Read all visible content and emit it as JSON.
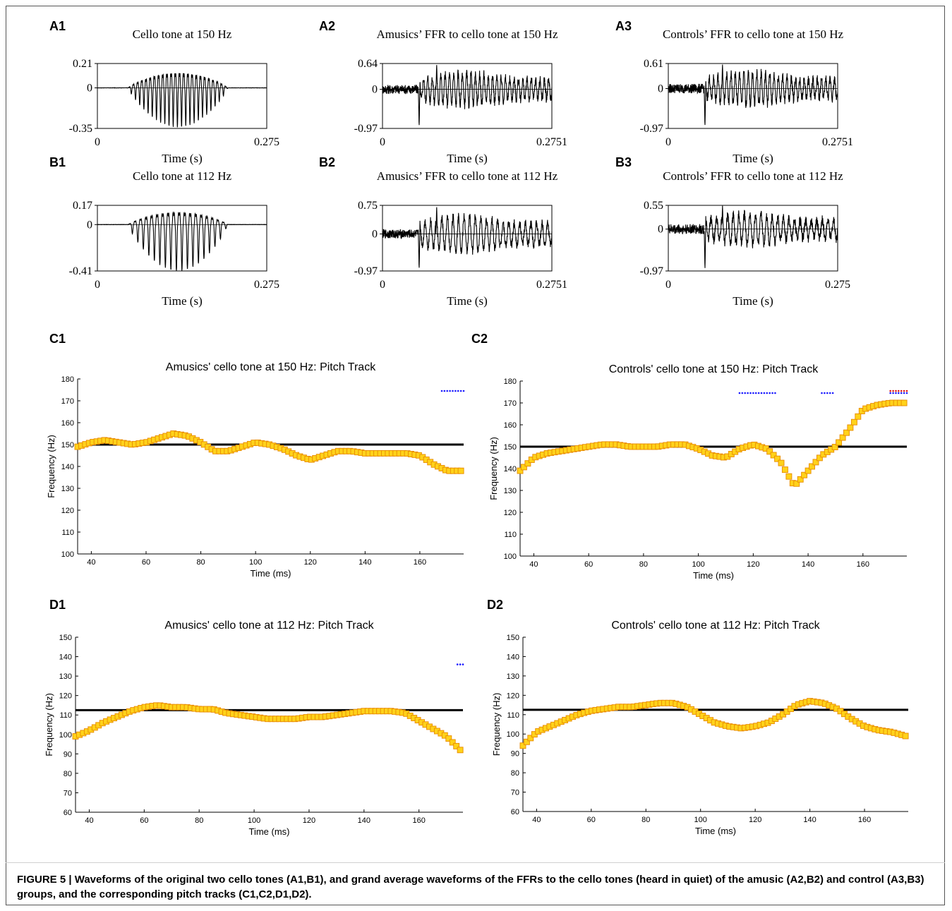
{
  "panel_labels": {
    "A1": "A1",
    "A2": "A2",
    "A3": "A3",
    "B1": "B1",
    "B2": "B2",
    "B3": "B3",
    "C1": "C1",
    "C2": "C2",
    "D1": "D1",
    "D2": "D2"
  },
  "caption": {
    "lead": "FIGURE 5 | ",
    "text": "Waveforms of the original two cello tones (A1,B1), and grand average waveforms of the FFRs to the cello tones (heard in quiet) of the amusic (A2,B2) and control (A3,B3) groups, and the corresponding pitch tracks (C1,C2,D1,D2)."
  },
  "colors": {
    "waveform": "#000000",
    "pitch_marker_fill": "#ffd21a",
    "pitch_marker_edge": "#e88a00",
    "reference_line": "#000000",
    "sig_blue": "#1a1aff",
    "sig_red": "#dd1010"
  },
  "chart_data": [
    {
      "id": "A1",
      "type": "line",
      "title": "Cello tone at 150 Hz",
      "xlabel": "Time (s)",
      "xlim": [
        0,
        0.275
      ],
      "x_tick_labels": [
        "0",
        "0.275"
      ],
      "y_tick_labels": [
        "0.21",
        "0",
        "-0.35"
      ],
      "ylim": [
        -0.35,
        0.21
      ],
      "waveform": {
        "onset_s": 0.05,
        "offset_s": 0.22,
        "cycles": 25,
        "pos_peak": 0.19,
        "neg_peak": -0.34
      }
    },
    {
      "id": "A2",
      "type": "line",
      "title": "Amusics’ FFR to cello tone at 150 Hz",
      "xlabel": "Time (s)",
      "xlim": [
        0,
        0.2751
      ],
      "x_tick_labels": [
        "0",
        "0.2751"
      ],
      "y_tick_labels": [
        "0.64",
        "0",
        "-0.97"
      ],
      "ylim": [
        -0.97,
        0.64
      ],
      "waveform": {
        "onset_s": 0.058,
        "offset_s": 0.2751,
        "cycles": 31,
        "pos_peak": 0.62,
        "neg_peak": -0.97
      }
    },
    {
      "id": "A3",
      "type": "line",
      "title": "Controls’ FFR to cello tone at 150 Hz",
      "xlabel": "Time (s)",
      "xlim": [
        0,
        0.2751
      ],
      "x_tick_labels": [
        "0",
        "0.2751"
      ],
      "y_tick_labels": [
        "0.61",
        "0",
        "-0.97"
      ],
      "ylim": [
        -0.97,
        0.61
      ],
      "waveform": {
        "onset_s": 0.058,
        "offset_s": 0.2751,
        "cycles": 31,
        "pos_peak": 0.6,
        "neg_peak": -0.97
      }
    },
    {
      "id": "B1",
      "type": "line",
      "title": "Cello tone at 112 Hz",
      "xlabel": "Time (s)",
      "xlim": [
        0,
        0.275
      ],
      "x_tick_labels": [
        "0",
        "0.275"
      ],
      "y_tick_labels": [
        "0.17",
        "0",
        "-0.41"
      ],
      "ylim": [
        -0.41,
        0.17
      ],
      "waveform": {
        "onset_s": 0.05,
        "offset_s": 0.22,
        "cycles": 19,
        "pos_peak": 0.16,
        "neg_peak": -0.41
      }
    },
    {
      "id": "B2",
      "type": "line",
      "title": "Amusics’ FFR to cello tone at 112 Hz",
      "xlabel": "Time (s)",
      "xlim": [
        0,
        0.2751
      ],
      "x_tick_labels": [
        "0",
        "0.2751"
      ],
      "y_tick_labels": [
        "0.75",
        "0",
        "-0.97"
      ],
      "ylim": [
        -0.97,
        0.75
      ],
      "waveform": {
        "onset_s": 0.058,
        "offset_s": 0.2751,
        "cycles": 24,
        "pos_peak": 0.72,
        "neg_peak": -0.97
      }
    },
    {
      "id": "B3",
      "type": "line",
      "title": "Controls’ FFR to cello tone at 112 Hz",
      "xlabel": "Time (s)",
      "xlim": [
        0,
        0.275
      ],
      "x_tick_labels": [
        "0",
        "0.275"
      ],
      "y_tick_labels": [
        "0.55",
        "0",
        "-0.97"
      ],
      "ylim": [
        -0.97,
        0.55
      ],
      "waveform": {
        "onset_s": 0.058,
        "offset_s": 0.275,
        "cycles": 24,
        "pos_peak": 0.54,
        "neg_peak": -0.97
      }
    },
    {
      "id": "C1",
      "type": "scatter",
      "title": "Amusics' cello tone at 150 Hz: Pitch Track",
      "xlabel": "Time (ms)",
      "ylabel": "Frequency (Hz)",
      "xlim": [
        35,
        176
      ],
      "ylim": [
        100,
        180
      ],
      "reference_hz": 150,
      "x_ticks": [
        40,
        60,
        80,
        100,
        120,
        140,
        160
      ],
      "y_ticks": [
        100,
        110,
        120,
        130,
        140,
        150,
        160,
        170,
        180
      ],
      "x": [
        35,
        40,
        45,
        50,
        55,
        60,
        65,
        70,
        75,
        80,
        85,
        90,
        95,
        100,
        105,
        110,
        115,
        120,
        125,
        130,
        135,
        140,
        145,
        150,
        155,
        160,
        165,
        170,
        175
      ],
      "y": [
        149,
        151,
        152,
        151,
        150,
        151,
        153,
        155,
        154,
        151,
        147,
        147,
        149,
        151,
        150,
        148,
        145,
        143,
        145,
        147,
        147,
        146,
        146,
        146,
        146,
        145,
        141,
        138,
        138
      ],
      "significance": [
        {
          "color": "blue",
          "x": [
            168,
            176
          ],
          "y": 174.5
        }
      ]
    },
    {
      "id": "C2",
      "type": "scatter",
      "title": "Controls' cello tone at 150 Hz: Pitch Track",
      "xlabel": "Time (ms)",
      "ylabel": "Frequency (Hz)",
      "xlim": [
        35,
        176
      ],
      "ylim": [
        100,
        180
      ],
      "reference_hz": 150,
      "x_ticks": [
        40,
        60,
        80,
        100,
        120,
        140,
        160
      ],
      "y_ticks": [
        100,
        110,
        120,
        130,
        140,
        150,
        160,
        170,
        180
      ],
      "x": [
        35,
        40,
        45,
        50,
        55,
        60,
        65,
        70,
        75,
        80,
        85,
        90,
        95,
        100,
        105,
        110,
        115,
        120,
        125,
        130,
        135,
        140,
        145,
        150,
        155,
        160,
        165,
        170,
        175
      ],
      "y": [
        139,
        145,
        147,
        148,
        149,
        150,
        151,
        151,
        150,
        150,
        150,
        151,
        151,
        149,
        146,
        145,
        149,
        151,
        149,
        143,
        132,
        139,
        146,
        150,
        158,
        167,
        169,
        170,
        170
      ],
      "significance": [
        {
          "color": "blue",
          "x": [
            115,
            128
          ],
          "y": 174.5
        },
        {
          "color": "blue",
          "x": [
            145,
            149
          ],
          "y": 174.5
        },
        {
          "color": "blue",
          "x": [
            170,
            176
          ],
          "y": 174.5
        },
        {
          "color": "red",
          "x": [
            170,
            176
          ],
          "y": 175.5
        }
      ]
    },
    {
      "id": "D1",
      "type": "scatter",
      "title": "Amusics' cello tone at 112 Hz: Pitch Track",
      "xlabel": "Time (ms)",
      "ylabel": "Frequency (Hz)",
      "xlim": [
        35,
        176
      ],
      "ylim": [
        60,
        150
      ],
      "reference_hz": 112.5,
      "x_ticks": [
        40,
        60,
        80,
        100,
        120,
        140,
        160
      ],
      "y_ticks": [
        60,
        70,
        80,
        90,
        100,
        110,
        120,
        130,
        140,
        150
      ],
      "x": [
        35,
        40,
        45,
        50,
        55,
        60,
        65,
        70,
        75,
        80,
        85,
        90,
        95,
        100,
        105,
        110,
        115,
        120,
        125,
        130,
        135,
        140,
        145,
        150,
        155,
        160,
        165,
        170,
        175
      ],
      "y": [
        99,
        102,
        106,
        109,
        112,
        114,
        115,
        114,
        114,
        113,
        113,
        111,
        110,
        109,
        108,
        108,
        108,
        109,
        109,
        110,
        111,
        112,
        112,
        112,
        111,
        107,
        103,
        99,
        92
      ],
      "significance": [
        {
          "color": "blue",
          "x": [
            174,
            176
          ],
          "y": 136
        }
      ]
    },
    {
      "id": "D2",
      "type": "scatter",
      "title": "Controls' cello tone at 112 Hz: Pitch Track",
      "xlabel": "Time (ms)",
      "ylabel": "Frequency (Hz)",
      "xlim": [
        35,
        176
      ],
      "ylim": [
        60,
        150
      ],
      "reference_hz": 112.5,
      "x_ticks": [
        40,
        60,
        80,
        100,
        120,
        140,
        160
      ],
      "y_ticks": [
        60,
        70,
        80,
        90,
        100,
        110,
        120,
        130,
        140,
        150
      ],
      "x": [
        35,
        40,
        45,
        50,
        55,
        60,
        65,
        70,
        75,
        80,
        85,
        90,
        95,
        100,
        105,
        110,
        115,
        120,
        125,
        130,
        135,
        140,
        145,
        150,
        155,
        160,
        165,
        170,
        175
      ],
      "y": [
        94,
        101,
        104,
        107,
        110,
        112,
        113,
        114,
        114,
        115,
        116,
        116,
        114,
        110,
        106,
        104,
        103,
        104,
        106,
        110,
        115,
        117,
        116,
        113,
        108,
        104,
        102,
        101,
        99
      ],
      "significance": []
    }
  ]
}
